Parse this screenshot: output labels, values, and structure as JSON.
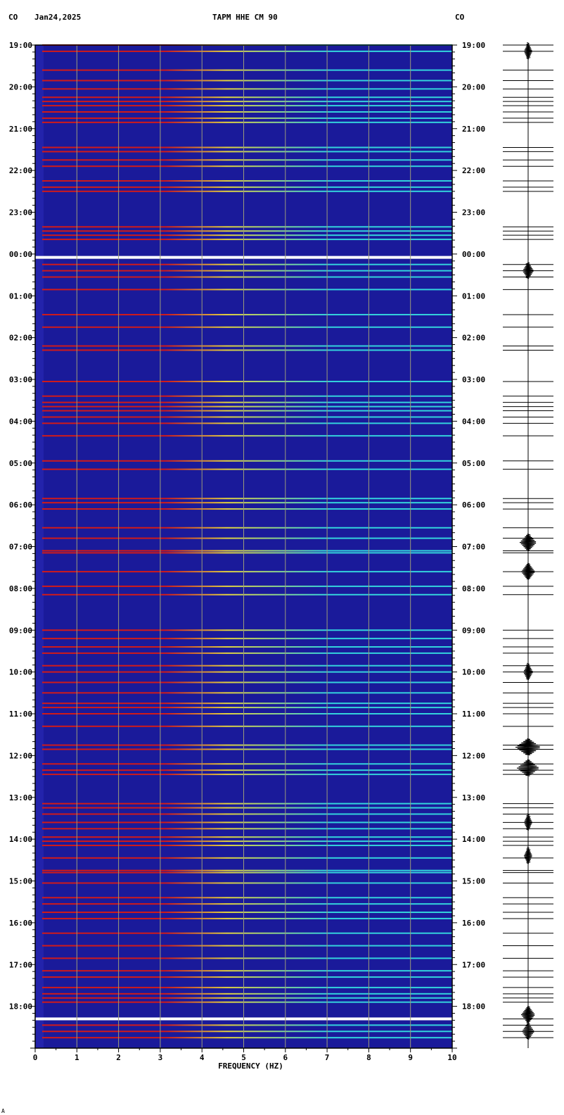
{
  "header": {
    "network_left": "CO",
    "date": "Jan24,2025",
    "station_title": "TAPM HHE CM 90",
    "network_right": "CO"
  },
  "footer_mark": "A",
  "colors": {
    "background": "#1a1a9a",
    "grid": "#9c9c7a",
    "band_cool": "#33d2dc",
    "band_mid": "#e0d040",
    "band_hot": "#d01a1a",
    "saturated": "#ffffff",
    "trace": "#000000"
  },
  "chart_data": {
    "type": "heatmap",
    "title": "TAPM HHE CM 90",
    "xlabel": "FREQUENCY (HZ)",
    "ylabel": "",
    "x_range": [
      0,
      10
    ],
    "x_ticks": [
      "0",
      "1",
      "2",
      "3",
      "4",
      "5",
      "6",
      "7",
      "8",
      "9",
      "10"
    ],
    "y_start_label": "19:00",
    "y_range_hours": [
      19,
      43
    ],
    "y_ticks": [
      "19:00",
      "20:00",
      "21:00",
      "22:00",
      "23:00",
      "00:00",
      "01:00",
      "02:00",
      "03:00",
      "04:00",
      "05:00",
      "06:00",
      "07:00",
      "08:00",
      "09:00",
      "10:00",
      "11:00",
      "12:00",
      "13:00",
      "14:00",
      "15:00",
      "16:00",
      "17:00",
      "18:00"
    ],
    "grid": true,
    "band_hours": [
      19.0,
      19.15,
      19.6,
      19.85,
      20.05,
      20.25,
      20.35,
      20.45,
      20.6,
      20.75,
      20.85,
      21.45,
      21.55,
      21.75,
      21.9,
      22.25,
      22.4,
      22.5,
      23.35,
      23.45,
      23.55,
      23.65,
      24.25,
      24.4,
      24.55,
      24.85,
      25.45,
      25.75,
      26.2,
      26.3,
      27.05,
      27.4,
      27.55,
      27.65,
      27.75,
      27.9,
      28.05,
      28.35,
      28.95,
      29.15,
      29.85,
      29.95,
      30.1,
      30.55,
      30.8,
      31.1,
      31.15,
      31.6,
      31.95,
      32.15,
      33.0,
      33.2,
      33.4,
      33.55,
      33.85,
      34.0,
      34.25,
      34.5,
      34.75,
      34.85,
      35.0,
      35.3,
      35.75,
      35.85,
      36.2,
      36.35,
      36.45,
      37.15,
      37.25,
      37.4,
      37.6,
      37.75,
      37.95,
      38.05,
      38.15,
      38.45,
      38.75,
      38.8,
      39.05,
      39.4,
      39.55,
      39.75,
      39.9,
      40.25,
      40.55,
      40.85,
      41.15,
      41.3,
      41.55,
      41.7,
      41.8,
      41.9,
      42.3,
      42.45,
      42.6,
      42.75
    ]
  }
}
